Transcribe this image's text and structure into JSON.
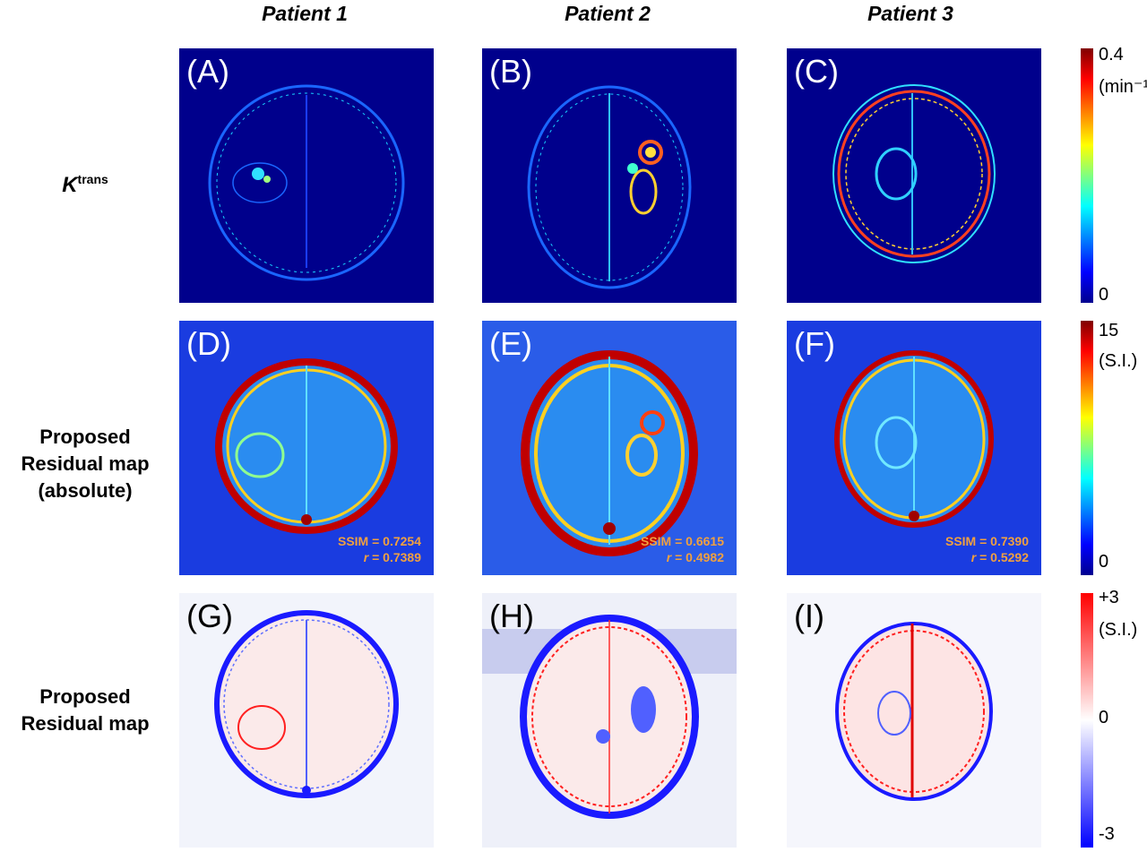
{
  "columns": [
    "Patient 1",
    "Patient 2",
    "Patient 3"
  ],
  "rows": {
    "ktrans": {
      "main": "K",
      "sup": "trans"
    },
    "abs": [
      "Proposed",
      "Residual map",
      "(absolute)"
    ],
    "res": [
      "Proposed",
      "Residual map"
    ]
  },
  "panels": [
    "(A)",
    "(B)",
    "(C)",
    "(D)",
    "(E)",
    "(F)",
    "(G)",
    "(H)",
    "(I)"
  ],
  "metrics": [
    {
      "ssim": "SSIM = 0.7254",
      "r_label": "r",
      "r_value": " = 0.7389"
    },
    {
      "ssim": "SSIM = 0.6615",
      "r_label": "r",
      "r_value": " = 0.4982"
    },
    {
      "ssim": "SSIM = 0.7390",
      "r_label": "r",
      "r_value": " = 0.5292"
    }
  ],
  "colorbars": {
    "ktrans": {
      "max": "0.4",
      "unit": "(min⁻¹",
      "min": "0",
      "colormap": "jet"
    },
    "abs": {
      "max": "15",
      "unit": "(S.I.)",
      "min": "0",
      "colormap": "jet"
    },
    "res": {
      "max": "+3",
      "unit": "(S.I.)",
      "zero": "0",
      "min": "-3",
      "colormap": "blue-white-red"
    }
  }
}
